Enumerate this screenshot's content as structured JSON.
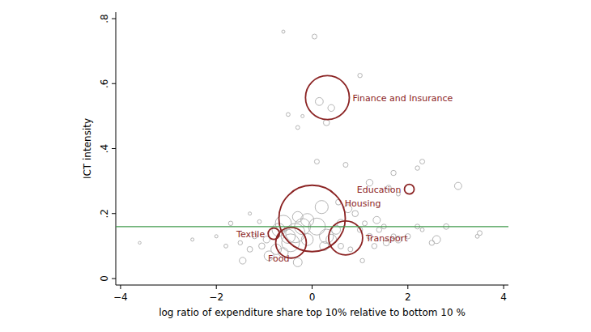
{
  "chart_data": {
    "type": "scatter",
    "x_label": "log ratio of expenditure share top 10% relative to bottom 10 %",
    "y_label": "ICT intensity",
    "xlim": [
      -4.1,
      4.1
    ],
    "xticks": [
      -4,
      -2,
      0,
      2,
      4
    ],
    "ylim": [
      -0.02,
      0.82
    ],
    "yticks": [
      {
        "value": 0,
        "label": "0"
      },
      {
        "value": 0.2,
        "label": ".2"
      },
      {
        "value": 0.4,
        "label": ".4"
      },
      {
        "value": 0.6,
        "label": ".6"
      },
      {
        "value": 0.8,
        "label": ".8"
      }
    ],
    "hline": 0.16,
    "series": [
      {
        "color": "#b4b4b4",
        "x": [
          -0.6,
          0.05,
          1.0,
          -0.5,
          -0.3,
          -0.2,
          0.15,
          0.4,
          0.3,
          0.1,
          0.7,
          1.7,
          2.2,
          2.3,
          1.2,
          1.6,
          3.05,
          1.8,
          0.55,
          0.75,
          2.8,
          3.5,
          3.45,
          2.6,
          2.5,
          2.2,
          2.0,
          1.8,
          1.7,
          1.4,
          1.5,
          1.35,
          1.2,
          1.1,
          1.0,
          1.05,
          0.8,
          0.6,
          1.3,
          1.55,
          2.3,
          -3.6,
          -2.0,
          -1.8,
          -1.5,
          -1.45,
          -1.3,
          -1.2,
          -1.1,
          -1.05,
          -1.3,
          -0.9,
          -0.95,
          -0.75,
          -0.6,
          -0.7,
          -0.5,
          -0.6,
          -0.3,
          -0.35,
          -0.2,
          -0.3,
          -0.1,
          0.1,
          0.2,
          0.3,
          0.4,
          0.5,
          0.25,
          0.6,
          -0.1,
          0.9,
          -1.7,
          -2.5,
          -0.45
        ],
        "values": [
          0.76,
          0.745,
          0.625,
          0.505,
          0.465,
          0.5,
          0.545,
          0.525,
          0.48,
          0.36,
          0.35,
          0.325,
          0.34,
          0.36,
          0.295,
          0.28,
          0.285,
          0.26,
          0.235,
          0.215,
          0.16,
          0.14,
          0.13,
          0.12,
          0.11,
          0.16,
          0.13,
          0.12,
          0.13,
          0.15,
          0.16,
          0.18,
          0.13,
          0.17,
          0.15,
          0.055,
          0.09,
          0.1,
          0.1,
          0.11,
          0.15,
          0.11,
          0.13,
          0.1,
          0.11,
          0.055,
          0.09,
          0.13,
          0.175,
          0.1,
          0.2,
          0.07,
          0.12,
          0.09,
          0.08,
          0.15,
          0.13,
          0.17,
          0.05,
          0.14,
          0.16,
          0.19,
          0.18,
          0.16,
          0.22,
          0.13,
          0.12,
          0.15,
          0.1,
          0.17,
          0.12,
          0.2,
          0.17,
          0.12,
          0.11
        ],
        "sizes": [
          0.01,
          0.04,
          0.03,
          0.02,
          0.02,
          0.01,
          0.15,
          0.1,
          0.08,
          0.04,
          0.04,
          0.05,
          0.03,
          0.04,
          0.1,
          0.04,
          0.12,
          0.02,
          0.06,
          0.15,
          0.06,
          0.04,
          0.02,
          0.15,
          0.05,
          0.04,
          0.05,
          0.1,
          0.04,
          0.05,
          0.04,
          0.12,
          0.06,
          0.04,
          0.05,
          0.03,
          0.04,
          0.06,
          0.05,
          0.08,
          0.02,
          0.005,
          0.01,
          0.02,
          0.03,
          0.1,
          0.06,
          0.04,
          0.02,
          0.08,
          0.01,
          0.25,
          0.1,
          0.3,
          0.25,
          0.5,
          0.6,
          0.8,
          0.2,
          1.2,
          0.8,
          0.3,
          0.5,
          0.9,
          0.5,
          0.6,
          0.3,
          0.2,
          0.2,
          0.15,
          0.4,
          0.08,
          0.03,
          0.01,
          1.0
        ]
      },
      {
        "color": "#8b2323",
        "x": [
          0.32,
          2.03,
          0.0,
          0.7,
          -0.8,
          -0.44
        ],
        "values": [
          0.557,
          0.275,
          0.185,
          0.125,
          0.138,
          0.11
        ],
        "sizes": [
          6.8,
          0.25,
          16,
          4,
          0.36,
          3.2
        ],
        "labels": [
          "Finance and Insurance",
          "Education",
          "Housing",
          "Transport",
          "Textile",
          "Food"
        ]
      }
    ]
  }
}
